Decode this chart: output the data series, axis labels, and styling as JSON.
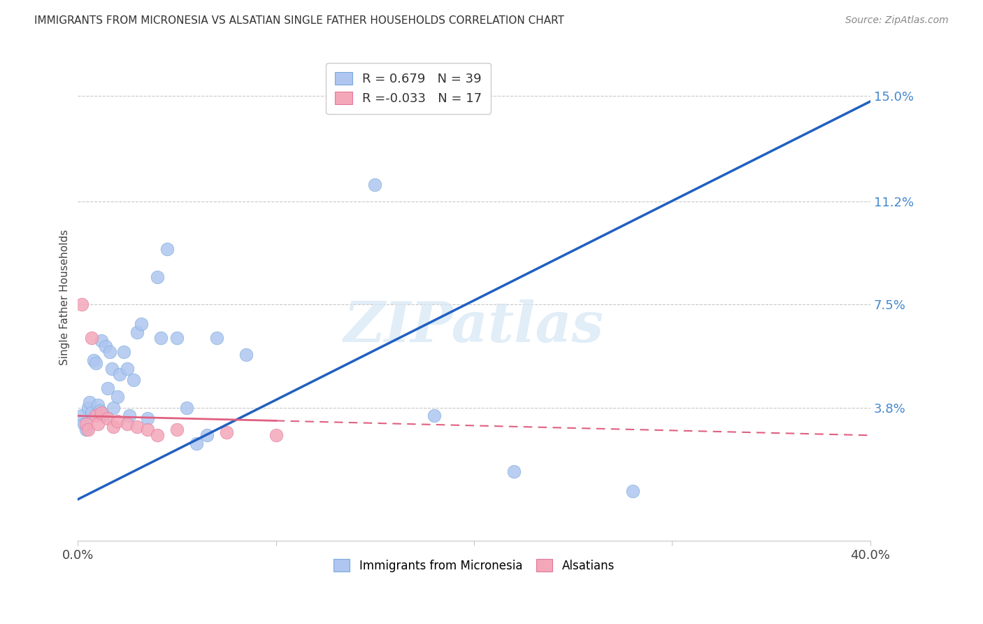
{
  "title": "IMMIGRANTS FROM MICRONESIA VS ALSATIAN SINGLE FATHER HOUSEHOLDS CORRELATION CHART",
  "source": "Source: ZipAtlas.com",
  "ylabel": "Single Father Households",
  "ytick_values": [
    3.8,
    7.5,
    11.2,
    15.0
  ],
  "xlim": [
    0.0,
    40.0
  ],
  "ylim": [
    -1.0,
    16.5
  ],
  "legend_entries": [
    {
      "label_r": "R =",
      "label_rv": " 0.679",
      "label_n": "N =",
      "label_nv": "39",
      "color": "#aec6f0"
    },
    {
      "label_r": "R =",
      "label_rv": "-0.033",
      "label_n": "N =",
      "label_nv": "17",
      "color": "#f4a7b9"
    }
  ],
  "blue_scatter_x": [
    0.2,
    0.3,
    0.4,
    0.5,
    0.6,
    0.7,
    0.8,
    0.9,
    1.0,
    1.1,
    1.2,
    1.3,
    1.4,
    1.5,
    1.6,
    1.7,
    1.8,
    2.0,
    2.1,
    2.3,
    2.5,
    2.6,
    2.8,
    3.0,
    3.2,
    3.5,
    4.0,
    4.2,
    4.5,
    5.0,
    5.5,
    6.0,
    6.5,
    7.0,
    8.5,
    15.0,
    18.0,
    22.0,
    28.0
  ],
  "blue_scatter_y": [
    3.5,
    3.2,
    3.0,
    3.8,
    4.0,
    3.6,
    5.5,
    5.4,
    3.9,
    3.7,
    6.2,
    3.5,
    6.0,
    4.5,
    5.8,
    5.2,
    3.8,
    4.2,
    5.0,
    5.8,
    5.2,
    3.5,
    4.8,
    6.5,
    6.8,
    3.4,
    8.5,
    6.3,
    9.5,
    6.3,
    3.8,
    2.5,
    2.8,
    6.3,
    5.7,
    11.8,
    3.5,
    1.5,
    0.8
  ],
  "pink_scatter_x": [
    0.2,
    0.4,
    0.5,
    0.7,
    0.9,
    1.0,
    1.2,
    1.5,
    1.8,
    2.0,
    2.5,
    3.0,
    3.5,
    4.0,
    5.0,
    7.5,
    10.0
  ],
  "pink_scatter_y": [
    7.5,
    3.2,
    3.0,
    6.3,
    3.5,
    3.2,
    3.6,
    3.4,
    3.1,
    3.3,
    3.2,
    3.1,
    3.0,
    2.8,
    3.0,
    2.9,
    2.8
  ],
  "blue_line_x0": 0.0,
  "blue_line_y0": 0.5,
  "blue_line_x1": 40.0,
  "blue_line_y1": 14.8,
  "pink_line_x0": 0.0,
  "pink_line_y0": 3.5,
  "pink_line_x1": 40.0,
  "pink_line_y1": 2.8,
  "pink_solid_end": 10.0,
  "blue_line_color": "#2060c0",
  "pink_line_color": "#e06080",
  "watermark_text": "ZIPatlas",
  "background_color": "#ffffff",
  "grid_color": "#c8c8c8"
}
